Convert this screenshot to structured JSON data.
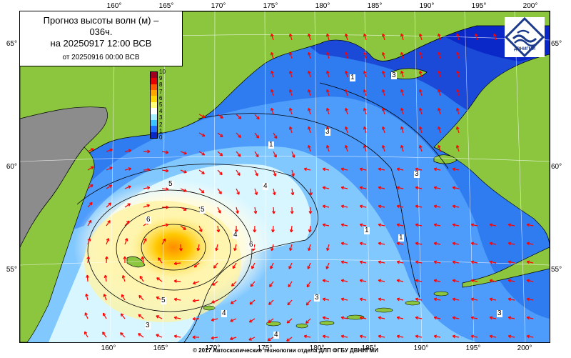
{
  "title": {
    "line1": "Прогноз высоты волн (м) –",
    "line2": "036ч.",
    "line3": "на 20250917 12:00 ВСВ",
    "line4": "от 20250916 00:00 ВСВ"
  },
  "colorbar": {
    "ticks": [
      "10",
      "9",
      "8",
      "7",
      "6",
      "5",
      "4",
      "3",
      "2",
      "1",
      "0"
    ],
    "colors": [
      "#a0001e",
      "#e60000",
      "#ff5a00",
      "#ffa500",
      "#ffd700",
      "#ffff7a",
      "#ffffff",
      "#a6ecff",
      "#3cc3ff",
      "#1f6dff",
      "#0a28c8"
    ]
  },
  "axes": {
    "longitudes": [
      "160°",
      "165°",
      "170°",
      "175°",
      "180°",
      "185°",
      "190°",
      "195°",
      "200°"
    ],
    "latitudes": [
      "65°",
      "60°",
      "55°"
    ]
  },
  "contour_labels": [
    "5",
    "4",
    "6",
    "5",
    "4",
    "6",
    "5",
    "3",
    "3",
    "1",
    "1",
    "3",
    "3",
    "1",
    "1",
    "3",
    "3",
    "4",
    "4"
  ],
  "logo": {
    "name": "dvnigmi-logo-icon",
    "text": "ДВНИГМИ"
  },
  "copyright": "© 2017 Автоскопические технологии отдела ДЛП ФГБУ ДВНИГМИ",
  "colors": {
    "land": "#8cc63f",
    "unmapped": "#8c8c8c",
    "arrow": "#ff0000",
    "contour": "#000000"
  }
}
